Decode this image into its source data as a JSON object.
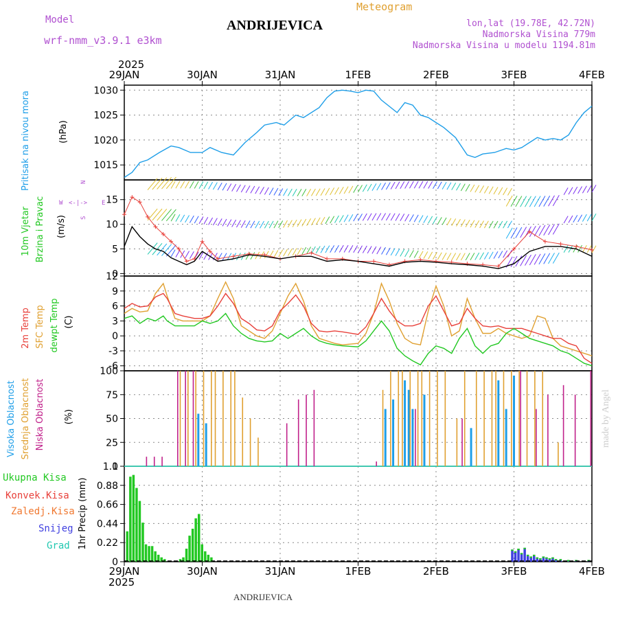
{
  "header": {
    "model_label": "Model",
    "model_name": "wrf-nmm_v3.9.1 e3km",
    "title": "ANDRIJEVICA",
    "meteogram": "Meteogram",
    "lonlat": "lon,lat (19.78E, 42.72N)",
    "elev": "Nadmorska Visina 779m",
    "elev_model": "Nadmorska Visina u modelu 1194.81m",
    "year_top": "2025",
    "year_bottom": "2025",
    "footer": "ANDRIJEVICA",
    "credit": "made by Angel"
  },
  "colors": {
    "pressure": "#1e9ee8",
    "temp2m": "#e8403a",
    "sfc": "#e0a030",
    "dew": "#22c822",
    "high": "#1e9ee8",
    "mid": "#e0a030",
    "low": "#c0208a",
    "precip": "#22c822",
    "snow": "#4040e0",
    "legend_purple": "#b050d0",
    "grid": "#888888"
  },
  "chart_data": {
    "type": "meteogram",
    "x_axis": {
      "unit": "days since 29JAN00Z",
      "range": [
        0,
        6
      ],
      "ticks": [
        "29JAN",
        "30JAN",
        "31JAN",
        "1FEB",
        "2FEB",
        "3FEB",
        "4FEB"
      ]
    },
    "panels": [
      {
        "id": "pressure",
        "type": "line",
        "ylabel": "Pritisak na nivou mora",
        "unit": "(hPa)",
        "yticks": [
          1015,
          1020,
          1025,
          1030
        ],
        "ylim": [
          1012,
          1031
        ],
        "x": [
          0,
          0.1,
          0.2,
          0.3,
          0.45,
          0.6,
          0.7,
          0.85,
          1.0,
          1.1,
          1.25,
          1.4,
          1.55,
          1.7,
          1.8,
          1.95,
          2.05,
          2.2,
          2.3,
          2.5,
          2.6,
          2.7,
          2.8,
          2.9,
          3.0,
          3.1,
          3.2,
          3.3,
          3.5,
          3.6,
          3.7,
          3.8,
          3.9,
          4.0,
          4.1,
          4.25,
          4.4,
          4.5,
          4.6,
          4.75,
          4.9,
          5.0,
          5.1,
          5.2,
          5.3,
          5.4,
          5.5,
          5.6,
          5.7,
          5.8,
          5.9,
          6.0
        ],
        "values": [
          1012.5,
          1013.5,
          1015.5,
          1016.0,
          1017.5,
          1018.8,
          1018.5,
          1017.5,
          1017.5,
          1018.5,
          1017.5,
          1017.0,
          1019.5,
          1021.5,
          1023.0,
          1023.5,
          1023.0,
          1025.0,
          1024.5,
          1026.5,
          1028.5,
          1029.8,
          1030.0,
          1029.8,
          1029.5,
          1030.0,
          1029.8,
          1028.0,
          1025.5,
          1027.5,
          1027.0,
          1025.0,
          1024.5,
          1023.5,
          1022.5,
          1020.5,
          1017.0,
          1016.5,
          1017.2,
          1017.5,
          1018.3,
          1018.0,
          1018.5,
          1019.5,
          1020.5,
          1020.0,
          1020.3,
          1020.0,
          1021.0,
          1023.5,
          1025.5,
          1026.8
        ]
      },
      {
        "id": "wind",
        "type": "line",
        "ylabel": "10m Vjetar",
        "ylabel2": "Brzina i Pravac",
        "unit": "(m/s)",
        "compass": [
          "N",
          "W",
          "E",
          "S"
        ],
        "yticks": [
          0,
          5,
          10,
          15
        ],
        "ylim": [
          -0.5,
          19
        ],
        "x": [
          0,
          0.1,
          0.2,
          0.3,
          0.4,
          0.5,
          0.6,
          0.7,
          0.8,
          0.9,
          1.0,
          1.1,
          1.2,
          1.4,
          1.6,
          1.8,
          2.0,
          2.2,
          2.4,
          2.6,
          2.8,
          3.0,
          3.2,
          3.4,
          3.6,
          3.8,
          4.0,
          4.2,
          4.4,
          4.6,
          4.8,
          5.0,
          5.2,
          5.4,
          5.6,
          5.8,
          6.0
        ],
        "speed": [
          5.5,
          9.5,
          7.5,
          6.0,
          5.0,
          4.5,
          3.2,
          2.5,
          1.8,
          2.5,
          4.5,
          3.5,
          2.5,
          3.0,
          3.8,
          3.5,
          3.0,
          3.5,
          3.5,
          2.5,
          2.8,
          2.5,
          2.0,
          1.5,
          2.3,
          2.5,
          2.3,
          2.0,
          1.8,
          1.5,
          1.0,
          2.0,
          4.5,
          5.5,
          5.5,
          5.0,
          3.5
        ],
        "gust": [
          12.0,
          15.5,
          14.5,
          11.5,
          9.5,
          8.0,
          6.5,
          5.0,
          2.5,
          3.0,
          6.5,
          4.5,
          3.0,
          3.5,
          4.0,
          3.8,
          3.0,
          3.5,
          4.2,
          3.0,
          3.0,
          2.5,
          2.5,
          1.8,
          2.5,
          2.8,
          2.5,
          2.3,
          2.0,
          1.8,
          1.5,
          5.0,
          8.5,
          6.5,
          6.0,
          5.5,
          4.8
        ]
      },
      {
        "id": "temperature",
        "type": "line",
        "ylabel": "2m Temp",
        "ylabel2": "SFC Temp",
        "ylabel3": "dewpt Temp",
        "unit": "(C)",
        "yticks": [
          -6,
          -3,
          0,
          3,
          6,
          9,
          12
        ],
        "ylim": [
          -7,
          12
        ],
        "x": [
          0,
          0.1,
          0.2,
          0.3,
          0.4,
          0.5,
          0.55,
          0.65,
          0.75,
          0.9,
          1.0,
          1.1,
          1.2,
          1.3,
          1.4,
          1.5,
          1.6,
          1.7,
          1.8,
          1.9,
          2.0,
          2.1,
          2.2,
          2.3,
          2.4,
          2.5,
          2.6,
          2.7,
          2.8,
          3.0,
          3.1,
          3.2,
          3.3,
          3.4,
          3.5,
          3.6,
          3.7,
          3.8,
          3.9,
          4.0,
          4.1,
          4.2,
          4.3,
          4.4,
          4.5,
          4.6,
          4.7,
          4.8,
          4.9,
          5.0,
          5.1,
          5.2,
          5.3,
          5.4,
          5.5,
          5.6,
          5.7,
          5.8,
          5.9,
          6.0
        ],
        "t2m": [
          5.5,
          6.5,
          5.8,
          6.0,
          7.8,
          8.5,
          7.5,
          4.5,
          4.0,
          3.5,
          3.5,
          4.0,
          6.0,
          8.5,
          6.5,
          3.5,
          2.5,
          1.2,
          1.0,
          2.0,
          5.0,
          6.5,
          8.2,
          6.0,
          2.5,
          1.0,
          0.8,
          1.0,
          0.8,
          0.3,
          1.8,
          4.5,
          7.5,
          5.0,
          3.0,
          2.0,
          2.0,
          2.5,
          6.0,
          8.0,
          5.0,
          2.0,
          2.5,
          5.5,
          3.5,
          2.0,
          1.8,
          2.0,
          1.5,
          1.5,
          1.5,
          1.0,
          0.5,
          0.0,
          -0.5,
          -0.5,
          -1.5,
          -2.0,
          -4.5,
          -5.5
        ],
        "sfc": [
          4.5,
          5.5,
          4.8,
          5.0,
          8.5,
          10.5,
          8.0,
          3.5,
          3.0,
          3.0,
          3.0,
          4.0,
          7.5,
          10.8,
          7.5,
          2.0,
          1.0,
          0.0,
          -0.5,
          1.0,
          4.5,
          8.0,
          10.5,
          7.0,
          2.0,
          -0.5,
          -1.0,
          -1.5,
          -1.8,
          -1.5,
          0.5,
          4.5,
          10.5,
          7.0,
          2.5,
          -0.5,
          -1.5,
          -1.8,
          5.0,
          10.0,
          6.0,
          0.0,
          1.0,
          7.5,
          3.5,
          0.5,
          0.5,
          1.5,
          0.5,
          0.0,
          -0.5,
          0.0,
          4.0,
          3.5,
          -0.5,
          -2.0,
          -2.5,
          -3.0,
          -3.5,
          -4.0
        ],
        "dew": [
          3.5,
          4.0,
          2.5,
          3.5,
          3.0,
          4.0,
          3.0,
          2.0,
          2.0,
          2.0,
          3.0,
          2.5,
          3.0,
          4.5,
          2.0,
          0.5,
          -0.5,
          -1.0,
          -1.2,
          -1.0,
          0.5,
          -0.5,
          0.5,
          1.5,
          0.0,
          -1.0,
          -1.5,
          -1.8,
          -2.0,
          -2.2,
          -1.0,
          1.0,
          3.0,
          1.0,
          -2.5,
          -4.0,
          -5.0,
          -5.8,
          -3.5,
          -2.0,
          -2.5,
          -3.5,
          -0.5,
          1.5,
          -2.0,
          -3.5,
          -2.0,
          -1.5,
          0.5,
          1.5,
          0.5,
          -0.5,
          -1.0,
          -1.5,
          -2.0,
          -3.0,
          -3.5,
          -4.5,
          -5.5,
          -6.0
        ]
      },
      {
        "id": "clouds",
        "type": "bar",
        "ylabel": "Visoka Oblacnost",
        "ylabel2": "Srednja Oblacnost",
        "ylabel3": "Niska Oblacnost",
        "unit": "(%)",
        "yticks": [
          0,
          25,
          50,
          75,
          100
        ],
        "ylim": [
          0,
          100
        ],
        "series": [
          {
            "name": "Visoka",
            "x": [
              0.95,
              1.05,
              3.35,
              3.45,
              3.6,
              3.65,
              3.7,
              3.85,
              4.45,
              4.8,
              4.9,
              5.0
            ],
            "values": [
              55,
              45,
              60,
              70,
              90,
              80,
              60,
              75,
              40,
              90,
              60,
              95
            ]
          },
          {
            "name": "Srednja",
            "x": [
              0.7,
              0.8,
              0.9,
              1.0,
              1.1,
              1.15,
              1.25,
              1.35,
              1.4,
              1.5,
              1.6,
              1.7,
              3.3,
              3.4,
              3.5,
              3.55,
              3.65,
              3.75,
              3.8,
              3.9,
              4.0,
              4.1,
              4.25,
              4.35,
              4.5,
              4.6,
              4.7,
              4.75,
              4.85,
              4.95,
              5.05,
              5.15,
              5.25,
              5.35,
              5.55
            ],
            "values": [
              100,
              100,
              100,
              100,
              100,
              100,
              100,
              100,
              100,
              72,
              50,
              30,
              80,
              100,
              100,
              100,
              100,
              100,
              100,
              100,
              100,
              100,
              50,
              100,
              100,
              100,
              100,
              100,
              100,
              100,
              100,
              100,
              100,
              100,
              25
            ]
          },
          {
            "name": "Niska",
            "x": [
              0.25,
              0.35,
              0.45,
              0.65,
              0.75,
              0.85,
              2.05,
              2.2,
              2.3,
              2.4,
              3.2,
              3.7,
              4.3,
              5.05,
              5.25,
              5.4,
              5.6,
              5.75,
              5.95
            ],
            "values": [
              10,
              10,
              10,
              100,
              100,
              100,
              45,
              70,
              75,
              80,
              5,
              60,
              50,
              100,
              60,
              75,
              85,
              75,
              100
            ]
          }
        ]
      },
      {
        "id": "precip",
        "type": "bar",
        "ylabel": "1hr Precip (mm)",
        "legend": [
          "Ukupna Kisa",
          "Konvek.Kisa",
          "Zaledj.Kisa",
          "Snijeg",
          "Grad"
        ],
        "yticks": [
          "0",
          "0.22",
          "0.44",
          "0.66",
          "0.88",
          "1.1"
        ],
        "ylim": [
          0,
          1.1
        ],
        "x": [
          0.04,
          0.08,
          0.12,
          0.16,
          0.2,
          0.24,
          0.28,
          0.32,
          0.36,
          0.4,
          0.44,
          0.48,
          0.52,
          0.56,
          0.6,
          0.64,
          0.68,
          0.72,
          0.76,
          0.8,
          0.84,
          0.88,
          0.92,
          0.96,
          1.0,
          1.04,
          1.08,
          1.12
        ],
        "values": [
          0.35,
          0.98,
          1.0,
          0.85,
          0.7,
          0.45,
          0.2,
          0.18,
          0.18,
          0.12,
          0.08,
          0.05,
          0.03,
          0.0,
          0.0,
          0.0,
          0.0,
          0.03,
          0.05,
          0.15,
          0.3,
          0.38,
          0.5,
          0.55,
          0.2,
          0.12,
          0.08,
          0.05
        ],
        "x_snow": [
          4.98,
          5.02,
          5.06,
          5.1,
          5.14,
          5.18,
          5.22,
          5.26,
          5.3,
          5.34,
          5.38,
          5.42,
          5.46,
          5.5,
          5.54,
          5.6,
          5.7,
          5.8,
          5.96
        ],
        "snow": [
          0.14,
          0.12,
          0.15,
          0.1,
          0.16,
          0.08,
          0.06,
          0.08,
          0.05,
          0.04,
          0.06,
          0.05,
          0.04,
          0.05,
          0.03,
          0.03,
          0.02,
          0.02,
          0.02
        ]
      }
    ]
  }
}
